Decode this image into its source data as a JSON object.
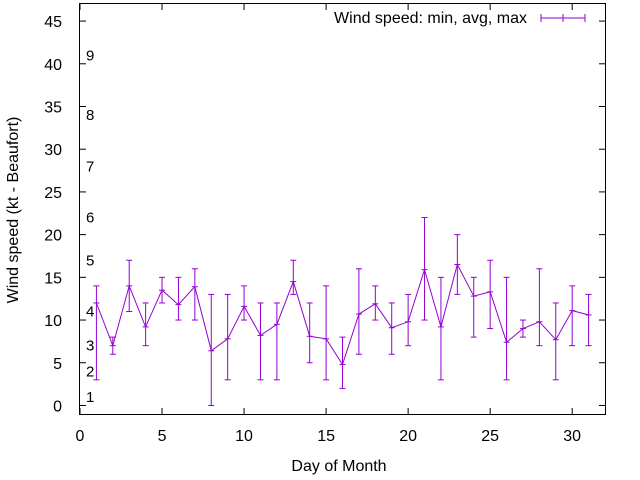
{
  "chart_data": {
    "type": "line",
    "title": "",
    "xlabel": "Day of Month",
    "ylabel": "Wind speed (kt - Beaufort)",
    "xlim": [
      0,
      32
    ],
    "ylim": [
      -1,
      47
    ],
    "xticks": [
      0,
      5,
      10,
      15,
      20,
      25,
      30
    ],
    "yticks": [
      0,
      5,
      10,
      15,
      20,
      25,
      30,
      35,
      40,
      45
    ],
    "grid": false,
    "legend_position": "top-right",
    "series": [
      {
        "name": "Wind speed: min, avg, max",
        "color": "#9400d3",
        "x": [
          1,
          2,
          3,
          4,
          5,
          6,
          7,
          8,
          9,
          10,
          11,
          12,
          13,
          14,
          15,
          16,
          17,
          18,
          19,
          20,
          21,
          22,
          23,
          24,
          25,
          26,
          27,
          28,
          29,
          30,
          31
        ],
        "avg": [
          12,
          7,
          14,
          9.2,
          13.5,
          11.8,
          13.9,
          6.4,
          7.8,
          11.6,
          8.2,
          9.5,
          14.5,
          8.1,
          7.8,
          4.8,
          10.7,
          11.9,
          9.1,
          9.8,
          15.9,
          9.2,
          16.5,
          12.8,
          13.3,
          7.4,
          9,
          9.8,
          7.7,
          11.1,
          10.6
        ],
        "min": [
          3,
          6,
          11,
          7,
          12,
          10,
          10,
          0,
          3,
          10,
          3,
          3,
          13,
          5,
          3,
          2,
          6,
          10,
          6,
          7,
          10,
          3,
          13,
          8,
          9,
          3,
          8,
          7,
          3,
          7,
          7
        ],
        "max": [
          14,
          8,
          17,
          12,
          15,
          15,
          16,
          13,
          13,
          14,
          12,
          12,
          17,
          12,
          14,
          8,
          16,
          14,
          12,
          13,
          22,
          15,
          20,
          15,
          17,
          15,
          10,
          16,
          12,
          14,
          13
        ]
      }
    ],
    "beaufort_labels": [
      {
        "label": "1",
        "kt": 1
      },
      {
        "label": "2",
        "kt": 4
      },
      {
        "label": "3",
        "kt": 7
      },
      {
        "label": "4",
        "kt": 11
      },
      {
        "label": "5",
        "kt": 17
      },
      {
        "label": "6",
        "kt": 22
      },
      {
        "label": "7",
        "kt": 28
      },
      {
        "label": "8",
        "kt": 34
      },
      {
        "label": "9",
        "kt": 41
      }
    ]
  }
}
